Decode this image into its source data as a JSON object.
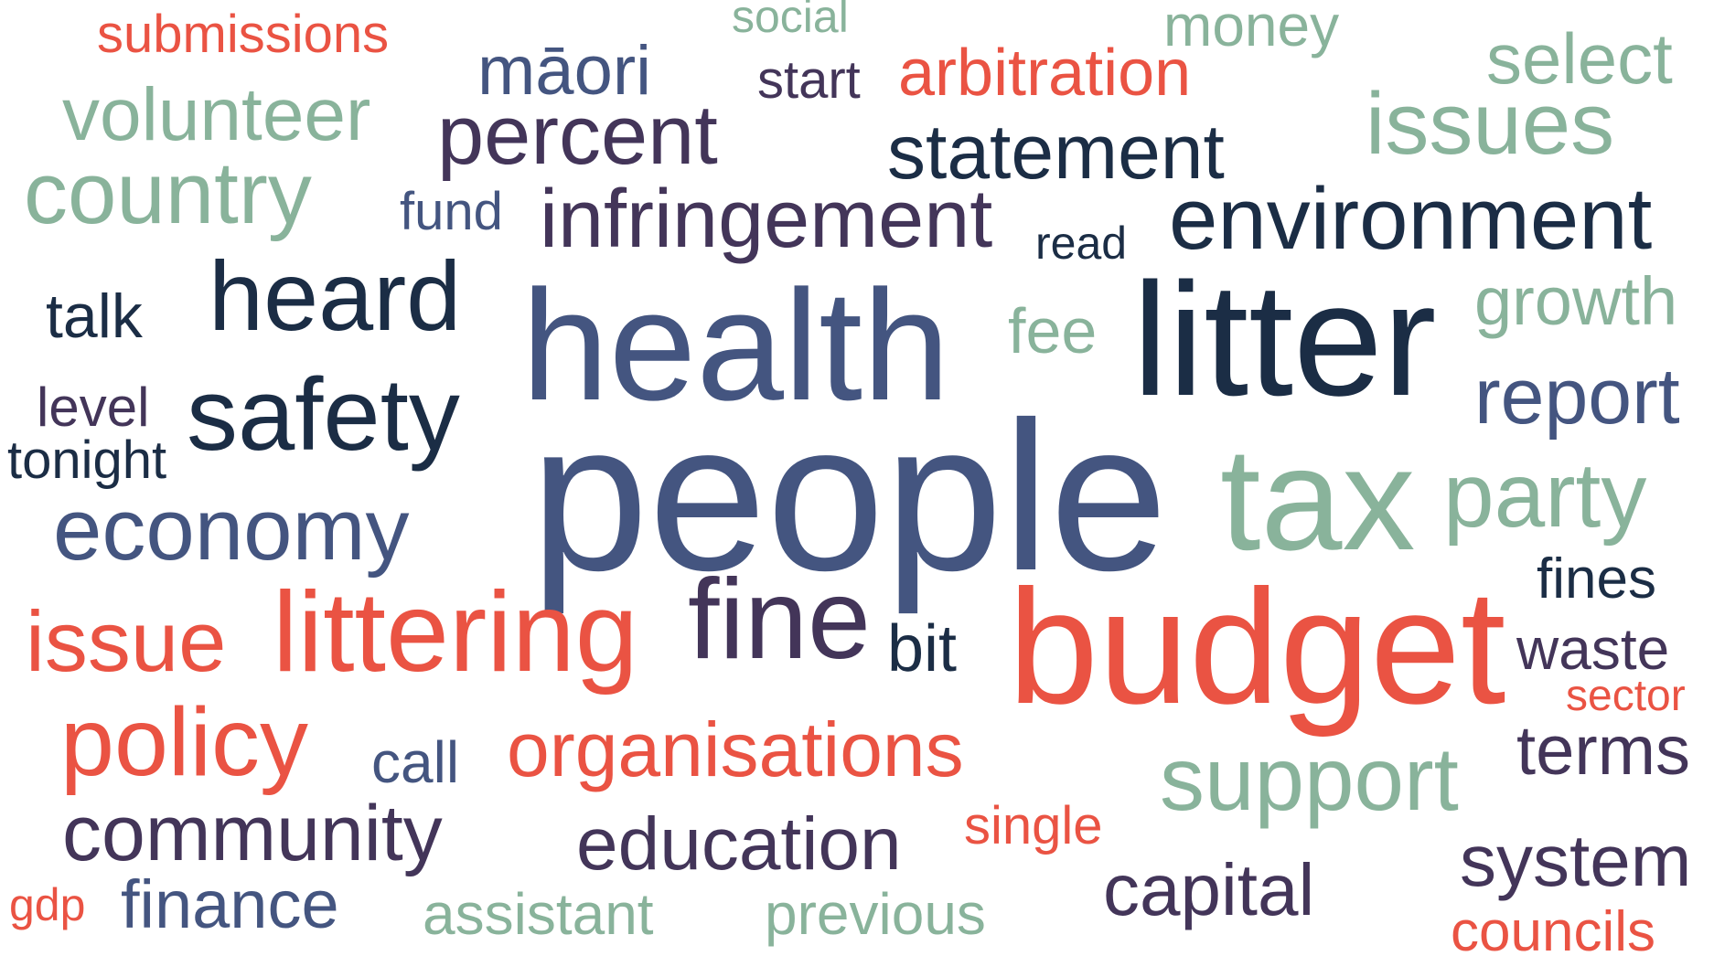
{
  "palette": {
    "navy": "#1b2d45",
    "slate": "#445580",
    "plum": "#433559",
    "sage": "#89b39b",
    "coral": "#ea5343",
    "background": "#ffffff"
  },
  "words": [
    {
      "text": "submissions",
      "color": "coral"
    },
    {
      "text": "social",
      "color": "sage"
    },
    {
      "text": "money",
      "color": "sage"
    },
    {
      "text": "select",
      "color": "sage"
    },
    {
      "text": "māori",
      "color": "slate"
    },
    {
      "text": "start",
      "color": "plum"
    },
    {
      "text": "arbitration",
      "color": "coral"
    },
    {
      "text": "volunteer",
      "color": "sage"
    },
    {
      "text": "percent",
      "color": "plum"
    },
    {
      "text": "issues",
      "color": "sage"
    },
    {
      "text": "statement",
      "color": "navy"
    },
    {
      "text": "country",
      "color": "sage"
    },
    {
      "text": "fund",
      "color": "slate"
    },
    {
      "text": "infringement",
      "color": "plum"
    },
    {
      "text": "environment",
      "color": "navy"
    },
    {
      "text": "read",
      "color": "navy"
    },
    {
      "text": "heard",
      "color": "navy"
    },
    {
      "text": "talk",
      "color": "navy"
    },
    {
      "text": "health",
      "color": "slate"
    },
    {
      "text": "litter",
      "color": "navy"
    },
    {
      "text": "growth",
      "color": "sage"
    },
    {
      "text": "fee",
      "color": "sage"
    },
    {
      "text": "level",
      "color": "plum"
    },
    {
      "text": "safety",
      "color": "navy"
    },
    {
      "text": "report",
      "color": "slate"
    },
    {
      "text": "tonight",
      "color": "navy"
    },
    {
      "text": "people",
      "color": "slate"
    },
    {
      "text": "tax",
      "color": "sage"
    },
    {
      "text": "party",
      "color": "sage"
    },
    {
      "text": "economy",
      "color": "slate"
    },
    {
      "text": "fines",
      "color": "navy"
    },
    {
      "text": "issue",
      "color": "coral"
    },
    {
      "text": "littering",
      "color": "coral"
    },
    {
      "text": "fine",
      "color": "plum"
    },
    {
      "text": "bit",
      "color": "navy"
    },
    {
      "text": "budget",
      "color": "coral"
    },
    {
      "text": "waste",
      "color": "plum"
    },
    {
      "text": "sector",
      "color": "coral"
    },
    {
      "text": "policy",
      "color": "coral"
    },
    {
      "text": "call",
      "color": "slate"
    },
    {
      "text": "organisations",
      "color": "coral"
    },
    {
      "text": "terms",
      "color": "plum"
    },
    {
      "text": "support",
      "color": "sage"
    },
    {
      "text": "community",
      "color": "plum"
    },
    {
      "text": "education",
      "color": "plum"
    },
    {
      "text": "single",
      "color": "coral"
    },
    {
      "text": "system",
      "color": "plum"
    },
    {
      "text": "capital",
      "color": "plum"
    },
    {
      "text": "gdp",
      "color": "coral"
    },
    {
      "text": "finance",
      "color": "slate"
    },
    {
      "text": "assistant",
      "color": "sage"
    },
    {
      "text": "previous",
      "color": "sage"
    },
    {
      "text": "councils",
      "color": "coral"
    }
  ]
}
